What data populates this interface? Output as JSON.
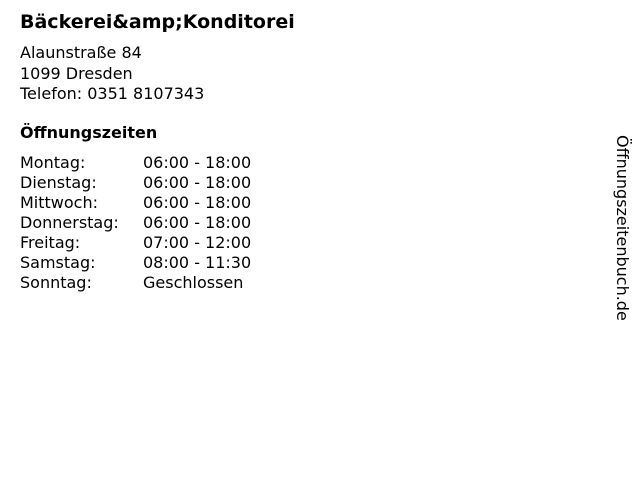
{
  "business": {
    "name": "Bäckerei&amp;Konditorei",
    "street": "Alaunstraße 84",
    "city": "1099 Dresden",
    "phone": "Telefon: 0351 8107343"
  },
  "opening_hours": {
    "heading": "Öffnungszeiten",
    "rows": [
      {
        "day": "Montag:",
        "hours": "06:00 - 18:00"
      },
      {
        "day": "Dienstag:",
        "hours": "06:00 - 18:00"
      },
      {
        "day": "Mittwoch:",
        "hours": "06:00 - 18:00"
      },
      {
        "day": "Donnerstag:",
        "hours": "06:00 - 18:00"
      },
      {
        "day": "Freitag:",
        "hours": "07:00 - 12:00"
      },
      {
        "day": "Samstag:",
        "hours": "08:00 - 11:30"
      },
      {
        "day": "Sonntag:",
        "hours": "Geschlossen"
      }
    ]
  },
  "watermark": "Öffnungszeitenbuch.de"
}
